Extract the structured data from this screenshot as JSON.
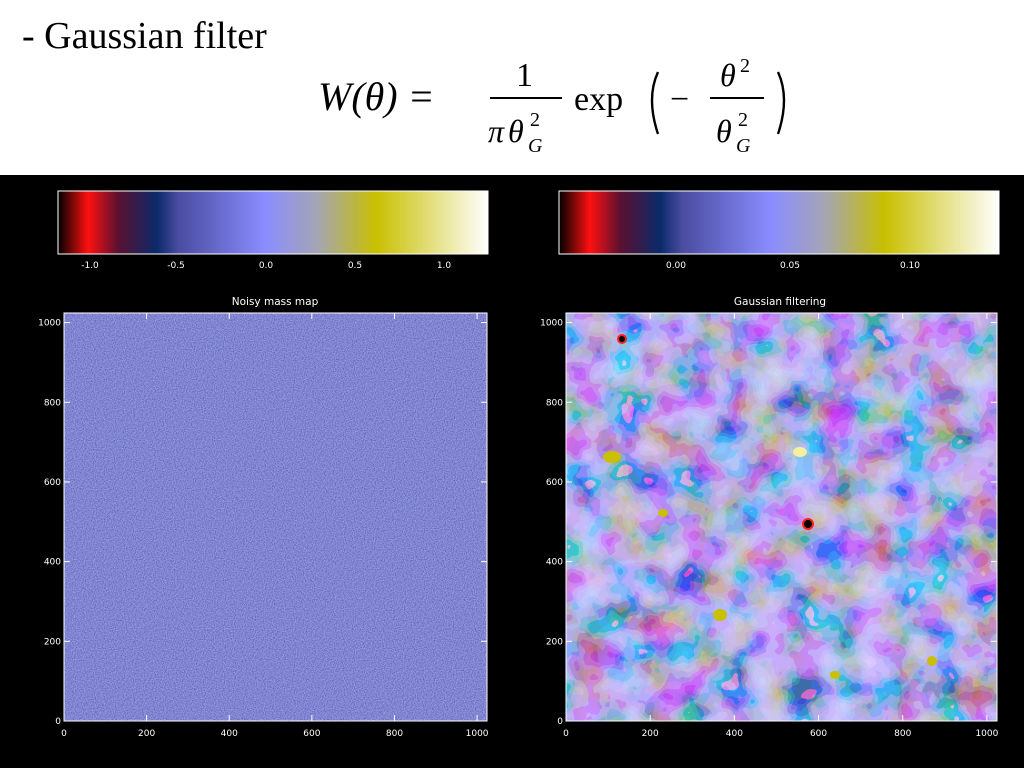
{
  "heading": "- Gaussian filter",
  "formula": {
    "lhs": "W(θ) =",
    "numerator": "1",
    "denominator_pi": "π",
    "theta": "θ",
    "sup": "2",
    "sub": "G",
    "exp": "exp",
    "minus": "−"
  },
  "colormap": [
    "#000000",
    "#ff0000",
    "#3a1030",
    "#0a2a6a",
    "#5a5cb0",
    "#8a8cff",
    "#a8a8c0",
    "#c8c000",
    "#ffffff"
  ],
  "panels": [
    {
      "title": "Noisy mass map",
      "colorbar_ticks": [
        "-1.0",
        "-0.5",
        "0.0",
        "0.5",
        "1.0"
      ],
      "x_ticks": [
        "0",
        "200",
        "400",
        "600",
        "800",
        "1000"
      ],
      "y_ticks": [
        "0",
        "200",
        "400",
        "600",
        "800",
        "1000"
      ]
    },
    {
      "title": "Gaussian filtering",
      "colorbar_ticks": [
        "0.00",
        "0.05",
        "0.10"
      ],
      "x_ticks": [
        "0",
        "200",
        "400",
        "600",
        "800",
        "1000"
      ],
      "y_ticks": [
        "0",
        "200",
        "400",
        "600",
        "800",
        "1000"
      ]
    }
  ]
}
